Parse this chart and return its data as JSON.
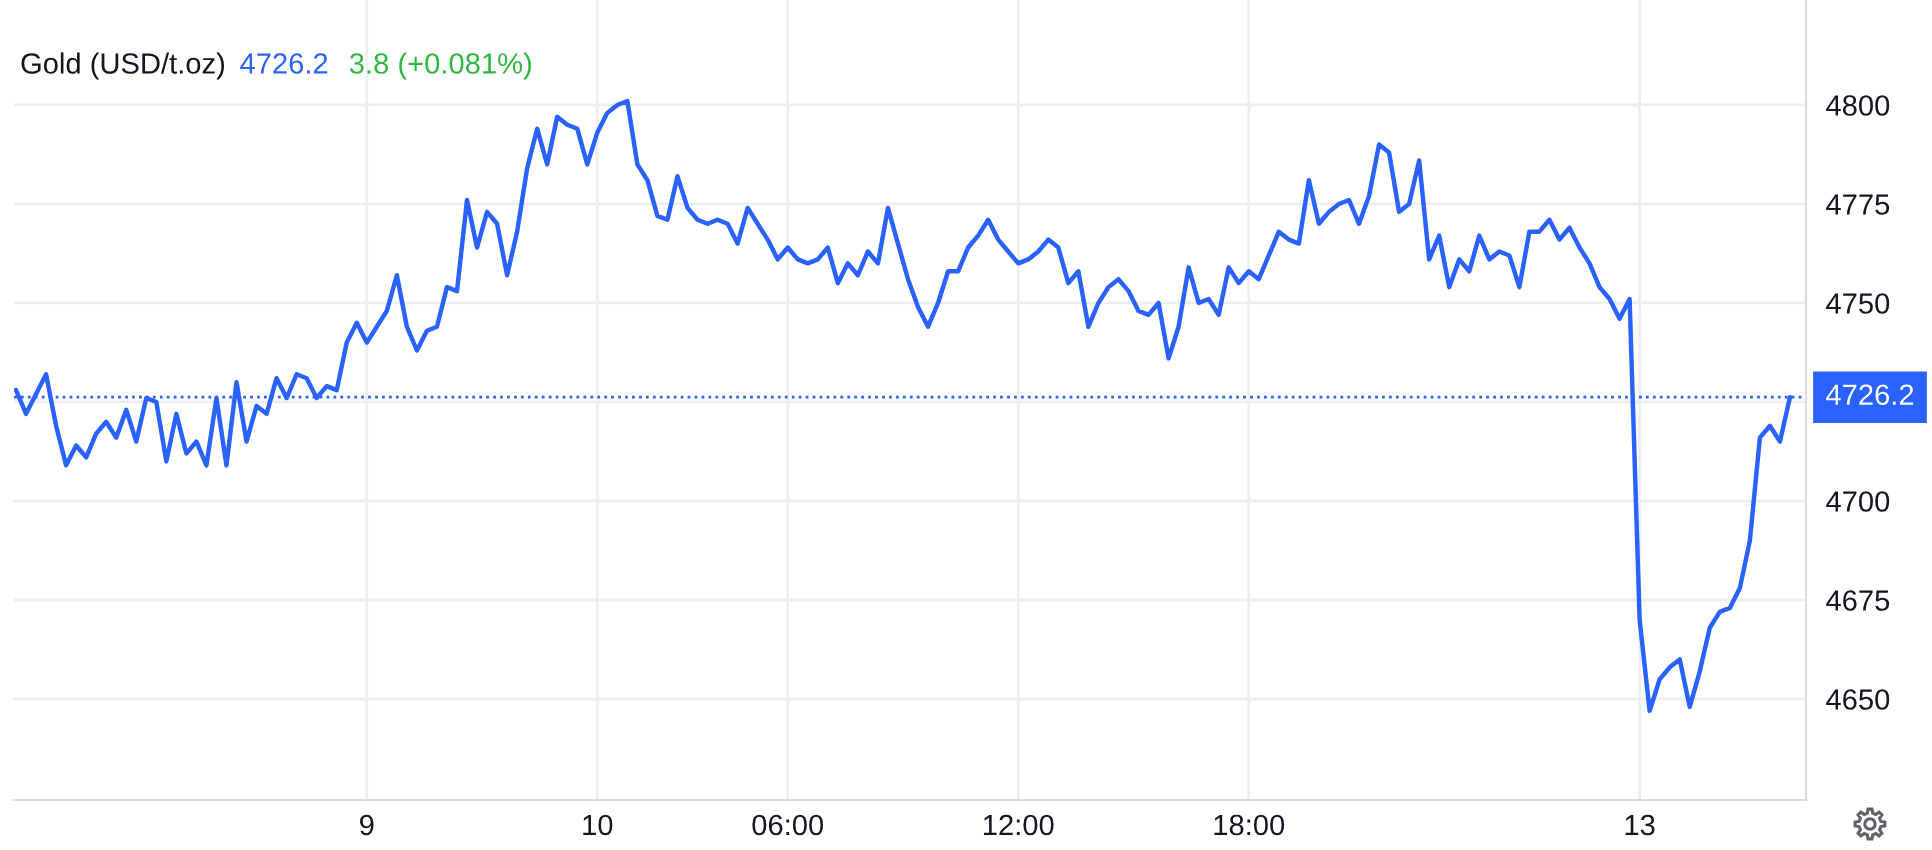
{
  "chart_data": {
    "type": "line",
    "title": "Gold (USD/t.oz)",
    "annotations": [
      "4726.2",
      "3.8 (+0.081%)"
    ],
    "categories": [
      null,
      null,
      null,
      null,
      null,
      null,
      null,
      null,
      null,
      null,
      null,
      null,
      null,
      null,
      null,
      null,
      null,
      null,
      null,
      null,
      null,
      null,
      null,
      null,
      null,
      null,
      null,
      null,
      null,
      null,
      null,
      null,
      null,
      null,
      null,
      "9",
      null,
      null,
      null,
      null,
      null,
      null,
      null,
      null,
      null,
      null,
      null,
      null,
      null,
      null,
      null,
      null,
      null,
      null,
      null,
      null,
      null,
      null,
      "10",
      null,
      null,
      null,
      null,
      null,
      null,
      null,
      null,
      null,
      null,
      null,
      null,
      null,
      null,
      null,
      null,
      null,
      null,
      "06:00",
      null,
      null,
      null,
      null,
      null,
      null,
      null,
      null,
      null,
      null,
      null,
      null,
      null,
      null,
      null,
      null,
      null,
      null,
      null,
      null,
      null,
      null,
      "12:00",
      null,
      null,
      null,
      null,
      null,
      null,
      null,
      null,
      null,
      null,
      null,
      null,
      null,
      null,
      null,
      null,
      null,
      null,
      null,
      null,
      null,
      null,
      "18:00",
      null,
      null,
      null,
      null,
      null,
      null,
      null,
      null,
      null,
      null,
      null,
      null,
      null,
      null,
      null,
      null,
      null,
      null,
      null,
      null,
      null,
      null,
      null,
      null,
      null,
      null,
      null,
      null,
      null,
      null,
      null,
      null,
      null,
      null,
      null,
      null,
      null,
      null,
      "13",
      null,
      null,
      null,
      null,
      null,
      null,
      null,
      null,
      null,
      null,
      null,
      null,
      null,
      null,
      null
    ],
    "series": [
      {
        "color": "#2962ff",
        "values": [
          4728,
          4722,
          4727,
          4732,
          4719,
          4709,
          4714,
          4711,
          4717,
          4720,
          4716,
          4723,
          4715,
          4726,
          4725,
          4710,
          4722,
          4712,
          4715,
          4709,
          4726,
          4709,
          4730,
          4715,
          4724,
          4722,
          4731,
          4726,
          4732,
          4731,
          4726,
          4729,
          4728,
          4740,
          4745,
          4740,
          4744,
          4748,
          4757,
          4744,
          4738,
          4743,
          4744,
          4754,
          4753,
          4776,
          4764,
          4773,
          4770,
          4757,
          4768,
          4784,
          4794,
          4785,
          4797,
          4795,
          4794,
          4785,
          4793,
          4798,
          4800,
          4801,
          4785,
          4781,
          4772,
          4771,
          4782,
          4774,
          4771,
          4770,
          4771,
          4770,
          4765,
          4774,
          4770,
          4766,
          4761,
          4764,
          4761,
          4760,
          4761,
          4764,
          4755,
          4760,
          4757,
          4763,
          4760,
          4774,
          4765,
          4756,
          4749,
          4744,
          4750,
          4758,
          4758,
          4764,
          4767,
          4771,
          4766,
          4763,
          4760,
          4761,
          4763,
          4766,
          4764,
          4755,
          4758,
          4744,
          4750,
          4754,
          4756,
          4753,
          4748,
          4747,
          4750,
          4736,
          4744,
          4759,
          4750,
          4751,
          4747,
          4759,
          4755,
          4758,
          4756,
          4762,
          4768,
          4766,
          4765,
          4781,
          4770,
          4773,
          4775,
          4776,
          4770,
          4777,
          4790,
          4788,
          4773,
          4775,
          4786,
          4761,
          4767,
          4754,
          4761,
          4758,
          4767,
          4761,
          4763,
          4762,
          4754,
          4768,
          4768,
          4771,
          4766,
          4769,
          4764,
          4760,
          4754,
          4751,
          4746,
          4751,
          4670,
          4647,
          4655,
          4658,
          4660,
          4648,
          4657,
          4668,
          4672,
          4673,
          4678,
          4690,
          4716,
          4719,
          4715,
          4726.2
        ]
      }
    ],
    "ylim": [
      4624.5,
      4826.5
    ],
    "yticks": [
      4650,
      4675,
      4700,
      {
        "value": 4725,
        "label": null
      },
      4750,
      4775,
      4800
    ],
    "grid": true,
    "ref_lines": [
      {
        "axis": "y",
        "value": 4726.2,
        "label": "4726.2",
        "color": "#2962ff",
        "line_style": "dotted"
      }
    ]
  }
}
